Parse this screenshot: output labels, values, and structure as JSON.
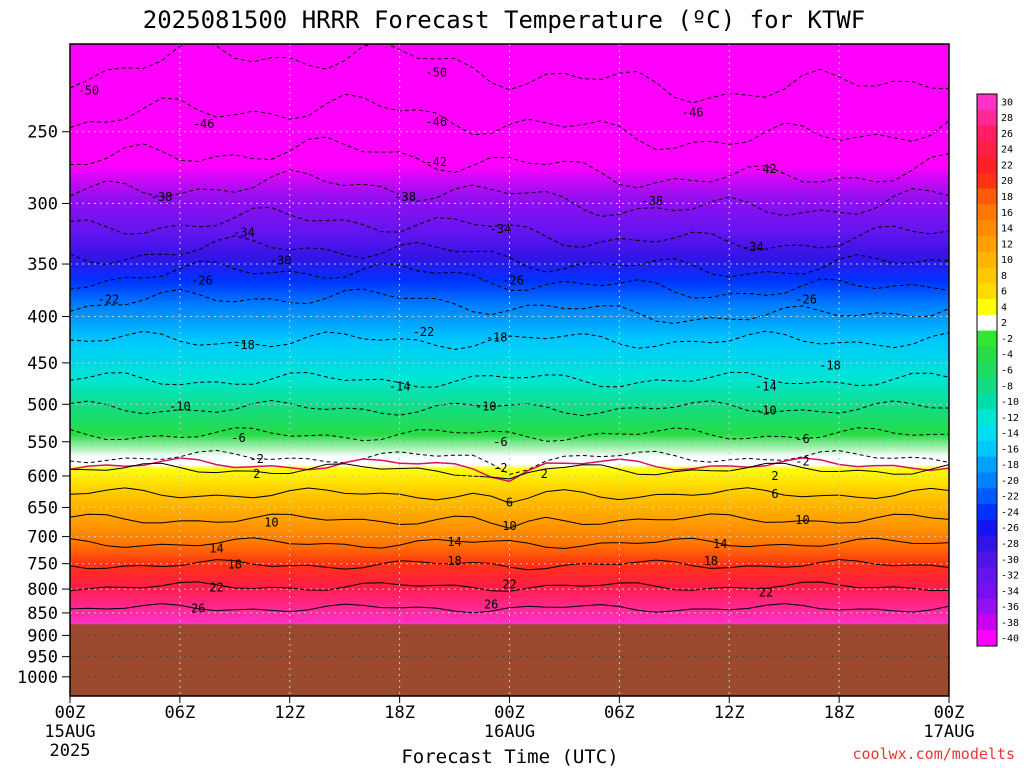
{
  "chart_data": {
    "type": "heatmap",
    "title": "2025081500 HRRR Forecast Temperature (ºC) for KTWF",
    "xlabel": "Forecast Time (UTC)",
    "ylabel": "",
    "credit": "coolwx.com/modelts",
    "y_axis": {
      "scale": "log-pressure",
      "range": [
        200,
        1050
      ],
      "ticks": [
        250,
        300,
        350,
        400,
        450,
        500,
        550,
        600,
        650,
        700,
        750,
        800,
        850,
        900,
        950,
        1000
      ]
    },
    "x_axis": {
      "range_hours": [
        0,
        48
      ],
      "ticks": [
        {
          "hour": 0,
          "label": "00Z",
          "sub1": "15AUG",
          "sub2": "2025"
        },
        {
          "hour": 6,
          "label": "06Z",
          "sub1": "",
          "sub2": ""
        },
        {
          "hour": 12,
          "label": "12Z",
          "sub1": "",
          "sub2": ""
        },
        {
          "hour": 18,
          "label": "18Z",
          "sub1": "",
          "sub2": ""
        },
        {
          "hour": 24,
          "label": "00Z",
          "sub1": "16AUG",
          "sub2": ""
        },
        {
          "hour": 30,
          "label": "06Z",
          "sub1": "",
          "sub2": ""
        },
        {
          "hour": 36,
          "label": "12Z",
          "sub1": "",
          "sub2": ""
        },
        {
          "hour": 42,
          "label": "18Z",
          "sub1": "",
          "sub2": ""
        },
        {
          "hour": 48,
          "label": "00Z",
          "sub1": "17AUG",
          "sub2": ""
        }
      ]
    },
    "surface_pressure_hpa": 875,
    "colorbar": {
      "levels": [
        30,
        28,
        26,
        24,
        22,
        20,
        18,
        16,
        14,
        12,
        10,
        8,
        6,
        4,
        2,
        -2,
        -4,
        -6,
        -8,
        -10,
        -12,
        -14,
        -16,
        -18,
        -20,
        -22,
        -24,
        -26,
        -28,
        -30,
        -32,
        -34,
        -36,
        -38,
        -40
      ],
      "colors": [
        "#ff32c8",
        "#ff2896",
        "#ff1e64",
        "#ff1e46",
        "#ff1e28",
        "#ff3214",
        "#ff5a0a",
        "#ff7800",
        "#ff8c00",
        "#ffa000",
        "#ffb400",
        "#ffc800",
        "#ffdc00",
        "#ffff00",
        "#ffffff",
        "#32e632",
        "#28dc46",
        "#1edc64",
        "#14dc82",
        "#00dcaa",
        "#00e6d2",
        "#00dcf0",
        "#00c8ff",
        "#00a0ff",
        "#0082ff",
        "#005aff",
        "#0032ff",
        "#1414f0",
        "#3214e6",
        "#5014e6",
        "#6414f0",
        "#780ff0",
        "#960ff0",
        "#c800f0",
        "#ff00ff"
      ]
    },
    "contour_labels": {
      "upper": [
        {
          "t": 1.0,
          "p": 225,
          "v": "-50"
        },
        {
          "t": 20.0,
          "p": 215,
          "v": "-50"
        },
        {
          "t": 7.3,
          "p": 245,
          "v": "-46"
        },
        {
          "t": 20.0,
          "p": 244,
          "v": "-46"
        },
        {
          "t": 34.0,
          "p": 238,
          "v": "-46"
        },
        {
          "t": 20.0,
          "p": 270,
          "v": "-42"
        },
        {
          "t": 38.0,
          "p": 275,
          "v": "-42"
        },
        {
          "t": 5.0,
          "p": 295,
          "v": "-38"
        },
        {
          "t": 18.3,
          "p": 295,
          "v": "-38"
        },
        {
          "t": 31.8,
          "p": 298,
          "v": "-38"
        },
        {
          "t": 9.5,
          "p": 323,
          "v": "-34"
        },
        {
          "t": 23.5,
          "p": 320,
          "v": "-34"
        },
        {
          "t": 37.3,
          "p": 335,
          "v": "-34"
        },
        {
          "t": 11.5,
          "p": 347,
          "v": "-30"
        },
        {
          "t": 7.2,
          "p": 365,
          "v": "-26"
        },
        {
          "t": 24.2,
          "p": 365,
          "v": "-26"
        },
        {
          "t": 40.2,
          "p": 383,
          "v": "-26"
        },
        {
          "t": 2.1,
          "p": 383,
          "v": "-22"
        },
        {
          "t": 19.3,
          "p": 416,
          "v": "-22"
        },
        {
          "t": 9.5,
          "p": 430,
          "v": "-18"
        },
        {
          "t": 23.3,
          "p": 422,
          "v": "-18"
        },
        {
          "t": 41.5,
          "p": 453,
          "v": "-18"
        },
        {
          "t": 18.0,
          "p": 478,
          "v": "-14"
        },
        {
          "t": 38.0,
          "p": 478,
          "v": "-14"
        },
        {
          "t": 6.0,
          "p": 503,
          "v": "-10"
        },
        {
          "t": 22.7,
          "p": 503,
          "v": "-10"
        },
        {
          "t": 38.0,
          "p": 508,
          "v": "-10"
        },
        {
          "t": 9.2,
          "p": 545,
          "v": "-6"
        },
        {
          "t": 23.5,
          "p": 550,
          "v": "-6"
        },
        {
          "t": 40.0,
          "p": 546,
          "v": "-6"
        },
        {
          "t": 10.2,
          "p": 575,
          "v": "-2"
        },
        {
          "t": 23.5,
          "p": 588,
          "v": "-2"
        },
        {
          "t": 40.0,
          "p": 578,
          "v": "-2"
        }
      ],
      "lower": [
        {
          "t": 10.2,
          "p": 597,
          "v": "2"
        },
        {
          "t": 25.9,
          "p": 597,
          "v": "2"
        },
        {
          "t": 38.5,
          "p": 600,
          "v": "2"
        },
        {
          "t": 24.0,
          "p": 642,
          "v": "6"
        },
        {
          "t": 38.5,
          "p": 628,
          "v": "6"
        },
        {
          "t": 11.0,
          "p": 675,
          "v": "10"
        },
        {
          "t": 24.0,
          "p": 681,
          "v": "10"
        },
        {
          "t": 40.0,
          "p": 671,
          "v": "10"
        },
        {
          "t": 8.0,
          "p": 722,
          "v": "14"
        },
        {
          "t": 21.0,
          "p": 710,
          "v": "14"
        },
        {
          "t": 35.5,
          "p": 713,
          "v": "14"
        },
        {
          "t": 9.0,
          "p": 752,
          "v": "18"
        },
        {
          "t": 21.0,
          "p": 745,
          "v": "18"
        },
        {
          "t": 35.0,
          "p": 745,
          "v": "18"
        },
        {
          "t": 8.0,
          "p": 797,
          "v": "22"
        },
        {
          "t": 24.0,
          "p": 791,
          "v": "22"
        },
        {
          "t": 38.0,
          "p": 807,
          "v": "22"
        },
        {
          "t": 7.0,
          "p": 840,
          "v": "26"
        },
        {
          "t": 23.0,
          "p": 832,
          "v": "26"
        }
      ]
    }
  }
}
